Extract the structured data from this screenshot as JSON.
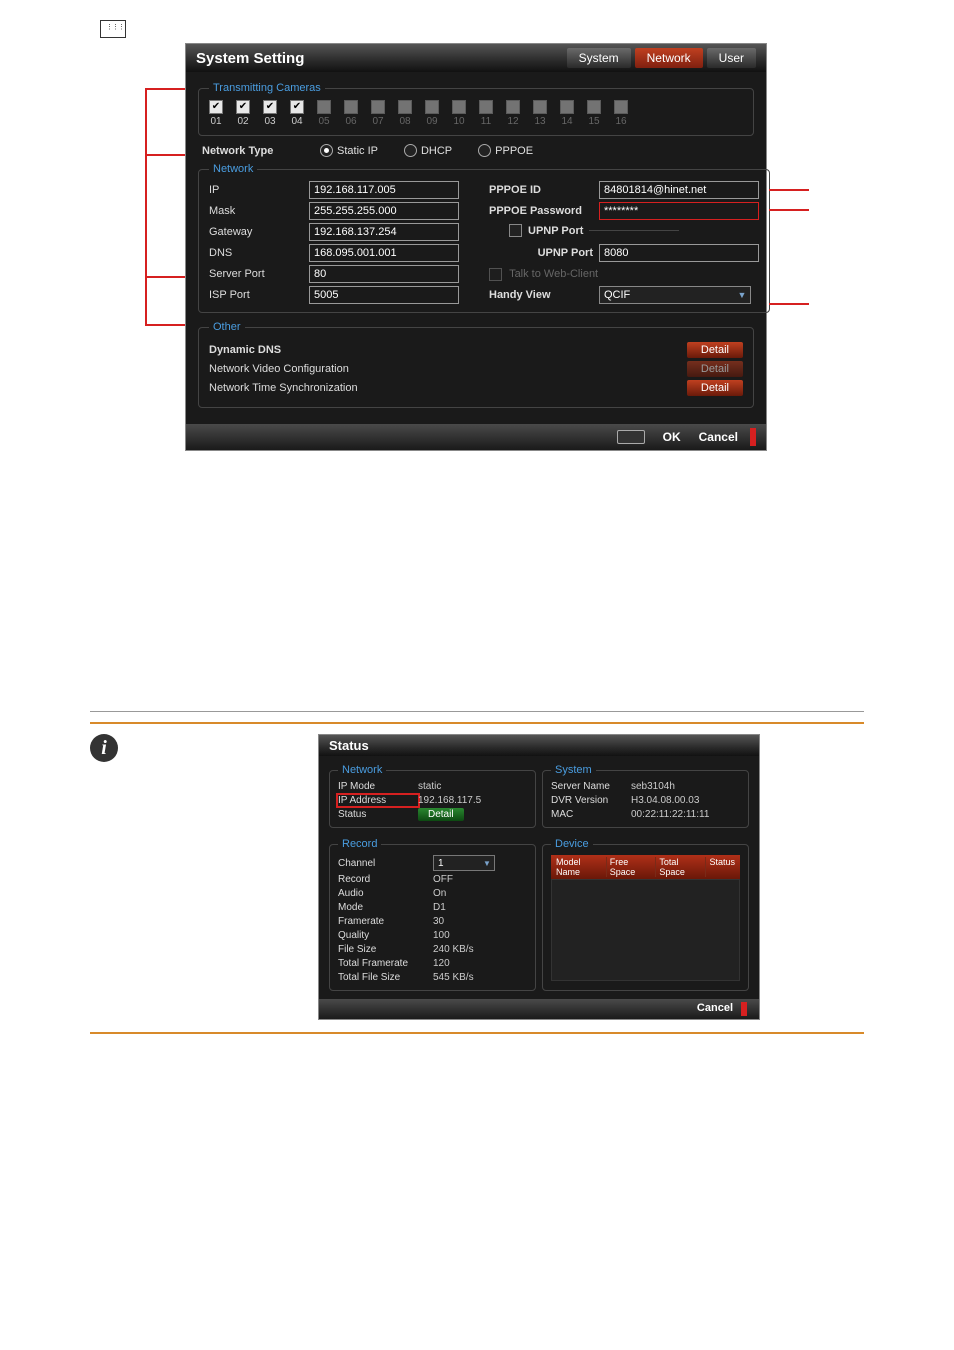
{
  "window1": {
    "title": "System Setting",
    "tabs": [
      "System",
      "Network",
      "User"
    ],
    "activeTab": "Network",
    "cameras": {
      "legend": "Transmitting Cameras",
      "items": [
        {
          "n": "01",
          "checked": true,
          "enabled": true
        },
        {
          "n": "02",
          "checked": true,
          "enabled": true
        },
        {
          "n": "03",
          "checked": true,
          "enabled": true
        },
        {
          "n": "04",
          "checked": true,
          "enabled": true
        },
        {
          "n": "05",
          "checked": false,
          "enabled": false
        },
        {
          "n": "06",
          "checked": false,
          "enabled": false
        },
        {
          "n": "07",
          "checked": false,
          "enabled": false
        },
        {
          "n": "08",
          "checked": false,
          "enabled": false
        },
        {
          "n": "09",
          "checked": false,
          "enabled": false
        },
        {
          "n": "10",
          "checked": false,
          "enabled": false
        },
        {
          "n": "11",
          "checked": false,
          "enabled": false
        },
        {
          "n": "12",
          "checked": false,
          "enabled": false
        },
        {
          "n": "13",
          "checked": false,
          "enabled": false
        },
        {
          "n": "14",
          "checked": false,
          "enabled": false
        },
        {
          "n": "15",
          "checked": false,
          "enabled": false
        },
        {
          "n": "16",
          "checked": false,
          "enabled": false
        }
      ]
    },
    "networkType": {
      "label": "Network Type",
      "options": [
        "Static IP",
        "DHCP",
        "PPPOE"
      ],
      "selected": "Static IP"
    },
    "network": {
      "legend": "Network",
      "ip_label": "IP",
      "ip": "192.168.117.005",
      "mask_label": "Mask",
      "mask": "255.255.255.000",
      "gateway_label": "Gateway",
      "gateway": "192.168.137.254",
      "dns_label": "DNS",
      "dns": "168.095.001.001",
      "serverPort_label": "Server Port",
      "serverPort": "80",
      "ispPort_label": "ISP Port",
      "ispPort": "5005",
      "pppoeId_label": "PPPOE ID",
      "pppoeId": "84801814@hinet.net",
      "pppoePw_label": "PPPOE Password",
      "pppoePw": "********",
      "upnpSection": "UPNP Port",
      "upnpPort_label": "UPNP Port",
      "upnpPort": "8080",
      "talkWeb_label": "Talk to Web-Client",
      "handyView_label": "Handy View",
      "handyView": "QCIF"
    },
    "other": {
      "legend": "Other",
      "ddns": "Dynamic DNS",
      "nvc": "Network Video Configuration",
      "nts": "Network Time Synchronization",
      "detail": "Detail"
    },
    "footer": {
      "ok": "OK",
      "cancel": "Cancel"
    }
  },
  "window2": {
    "title": "Status",
    "network": {
      "legend": "Network",
      "ipmode_label": "IP Mode",
      "ipmode": "static",
      "ipaddr_label": "IP Address",
      "ipaddr": "192.168.117.5",
      "status_label": "Status",
      "detail": "Detail"
    },
    "system": {
      "legend": "System",
      "server_label": "Server Name",
      "server": "seb3104h",
      "ver_label": "DVR Version",
      "ver": "H3.04.08.00.03",
      "mac_label": "MAC",
      "mac": "00:22:11:22:11:11"
    },
    "record": {
      "legend": "Record",
      "channel_label": "Channel",
      "channel": "1",
      "rec_label": "Record",
      "rec": "OFF",
      "audio_label": "Audio",
      "audio": "On",
      "mode_label": "Mode",
      "mode": "D1",
      "fr_label": "Framerate",
      "fr": "30",
      "q_label": "Quality",
      "q": "100",
      "fs_label": "File Size",
      "fs": "240 KB/s",
      "tfr_label": "Total Framerate",
      "tfr": "120",
      "tfs_label": "Total File Size",
      "tfs": "545 KB/s"
    },
    "device": {
      "legend": "Device",
      "cols": [
        "Model Name",
        "Free Space",
        "Total Space",
        "Status"
      ]
    },
    "footer": {
      "cancel": "Cancel"
    }
  }
}
